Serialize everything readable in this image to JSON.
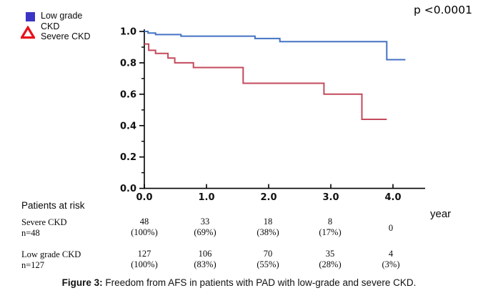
{
  "header": {
    "p_value": "p <0.0001"
  },
  "legend": {
    "low_grade_label": "Low grade CKD",
    "severe_label": "Severe CKD",
    "low_grade_marker_color": "#3a35c3",
    "severe_marker_color": "#e8111c"
  },
  "chart_data": {
    "type": "line",
    "subtype": "kaplan-meier-step",
    "title": "",
    "xlabel": "year",
    "ylabel": "",
    "xlim": [
      0,
      4.5
    ],
    "ylim": [
      0.0,
      1.0
    ],
    "grid": false,
    "legend_position": "top-left",
    "annotation": "p <0.0001",
    "x_ticks": [
      {
        "value": 0,
        "label": "0.0"
      },
      {
        "value": 1,
        "label": "1.0"
      },
      {
        "value": 2,
        "label": "2.0"
      },
      {
        "value": 3,
        "label": "3.0"
      },
      {
        "value": 4,
        "label": "4.0"
      }
    ],
    "y_ticks": [
      {
        "value": 1.0,
        "label": "1.0"
      },
      {
        "value": 0.8,
        "label": "0.8"
      },
      {
        "value": 0.6,
        "label": "0.6"
      },
      {
        "value": 0.4,
        "label": "0.4"
      },
      {
        "value": 0.2,
        "label": "0.2"
      },
      {
        "value": 0.0,
        "label": "0.0"
      }
    ],
    "y_minor_ticks": [
      0.9,
      0.7,
      0.5,
      0.3,
      0.1
    ],
    "series": [
      {
        "name": "Low grade CKD",
        "color": "#4472c4",
        "points": [
          [
            0,
            1.0
          ],
          [
            0.06,
            0.99
          ],
          [
            0.18,
            0.98
          ],
          [
            0.59,
            0.97
          ],
          [
            1.78,
            0.955
          ],
          [
            2.18,
            0.935
          ],
          [
            3.9,
            0.82
          ],
          [
            4.2,
            0.82
          ]
        ]
      },
      {
        "name": "Severe CKD",
        "color": "#c34a5c",
        "points": [
          [
            0,
            0.92
          ],
          [
            0.07,
            0.88
          ],
          [
            0.18,
            0.86
          ],
          [
            0.38,
            0.83
          ],
          [
            0.49,
            0.8
          ],
          [
            0.79,
            0.77
          ],
          [
            1.59,
            0.67
          ],
          [
            2.89,
            0.6
          ],
          [
            3.5,
            0.44
          ],
          [
            3.9,
            0.44
          ]
        ]
      }
    ]
  },
  "risk_table": {
    "title": "Patients at risk",
    "rows": [
      {
        "label": "Severe CKD",
        "sublabel": "n=48",
        "values": [
          "48",
          "33",
          "18",
          "8",
          "0"
        ],
        "percents": [
          "(100%)",
          "(69%)",
          "(38%)",
          "(17%)",
          ""
        ]
      },
      {
        "label": "Low grade CKD",
        "sublabel": "n=127",
        "values": [
          "127",
          "106",
          "70",
          "35",
          "4"
        ],
        "percents": [
          "(100%)",
          "(83%)",
          "(55%)",
          "(28%)",
          "(3%)"
        ]
      }
    ]
  },
  "caption": {
    "prefix": "Figure 3:",
    "text": " Freedom from AFS in patients with PAD with low-grade and severe CKD."
  }
}
